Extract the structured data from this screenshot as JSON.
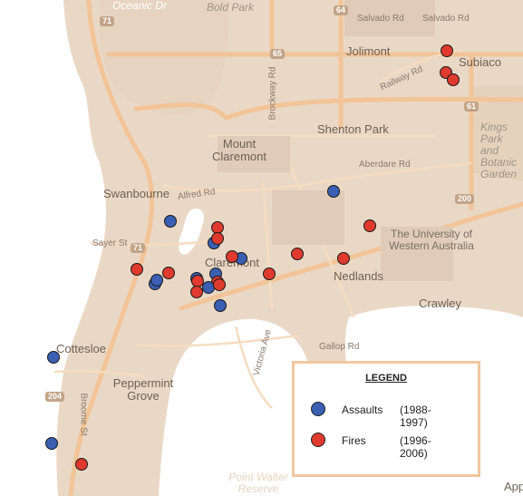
{
  "labels": {
    "bold_park": "Bold Park",
    "oceanic": "Oceanic Dr",
    "salvado_rd_1": "Salvado Rd",
    "salvado_rd_2": "Salvado Rd",
    "jolimont": "Jolimont",
    "subiaco": "Subiaco",
    "railway_rd": "Railway Rd",
    "brockway_rd": "Brockway Rd",
    "shenton_park": "Shenton Park",
    "kings_park": "Kings Park and Botanic Garden",
    "mount_claremont": "Mount Claremont",
    "aberdare_rd": "Aberdare Rd",
    "swanbourne": "Swanbourne",
    "alfred_rd": "Alfred Rd",
    "university": "The University of Western Australia",
    "sayer_st": "Sayer St",
    "claremont": "Claremont",
    "nedlands": "Nedlands",
    "crawley": "Crawley",
    "cottesloe": "Cottesloe",
    "gallop_rd": "Gallop Rd",
    "peppermint_grove": "Peppermint Grove",
    "broome_st": "Broome St",
    "victoria_ave": "Victoria Ave",
    "point_walter": "Point Walter Reserve",
    "app": "App"
  },
  "shields": {
    "r71_top": "71",
    "r64": "64",
    "r65": "65",
    "r61": "61",
    "r200": "200",
    "r71_mid": "71",
    "r204": "204"
  },
  "legend": {
    "title": "LEGEND",
    "assaults_label": "Assaults",
    "assaults_period": "(1988-1997)",
    "fires_label": "Fires",
    "fires_period": "(1996-2006)",
    "assaults_color": "#3a5fb3",
    "fires_color": "#e03a2e"
  }
}
